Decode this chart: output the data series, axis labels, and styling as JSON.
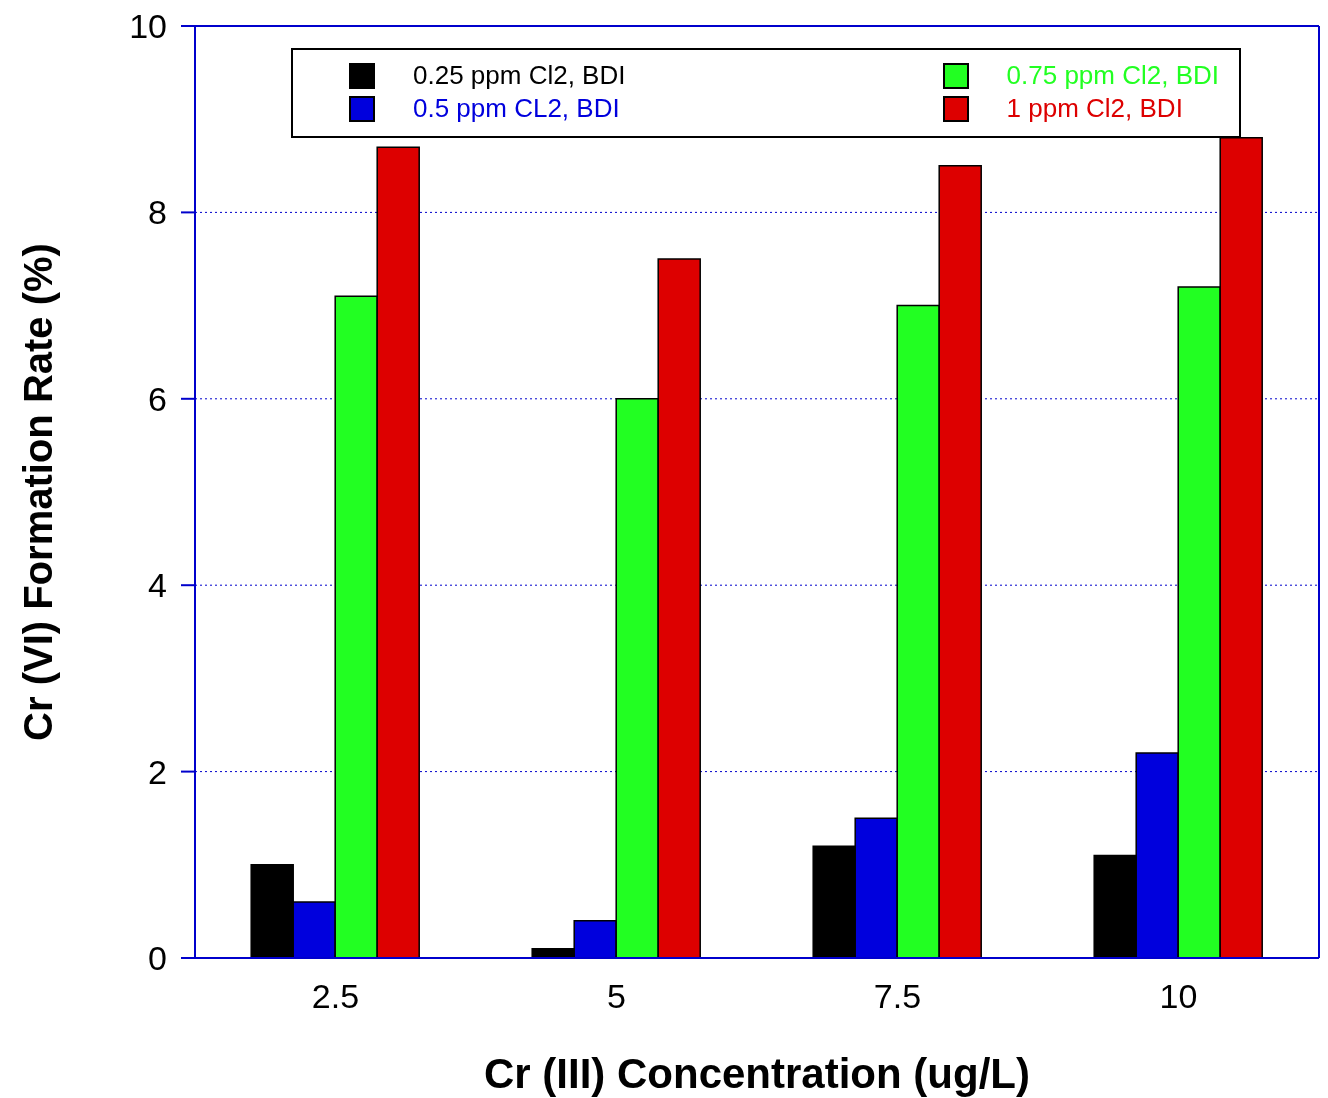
{
  "chart_data": {
    "type": "bar",
    "xlabel": "Cr (III) Concentration (ug/L)",
    "ylabel": "Cr (VI) Formation Rate (%)",
    "categories": [
      "2.5",
      "5",
      "7.5",
      "10"
    ],
    "series": [
      {
        "name": "0.25 ppm Cl2, BDI",
        "color": "#000000",
        "values": [
          1.0,
          0.1,
          1.2,
          1.1
        ]
      },
      {
        "name": "0.5 ppm CL2, BDI",
        "color": "#0000dd",
        "values": [
          0.6,
          0.4,
          1.5,
          2.2
        ]
      },
      {
        "name": "0.75 ppm Cl2, BDI",
        "color": "#22ff22",
        "values": [
          7.1,
          6.0,
          7.0,
          7.2
        ]
      },
      {
        "name": "1 ppm Cl2, BDI",
        "color": "#dd0000",
        "values": [
          8.7,
          7.5,
          8.5,
          8.8
        ]
      }
    ],
    "ylim": [
      0,
      10
    ],
    "yticks": [
      0,
      2,
      4,
      6,
      8,
      10
    ],
    "grid": "y",
    "legend": "top"
  }
}
